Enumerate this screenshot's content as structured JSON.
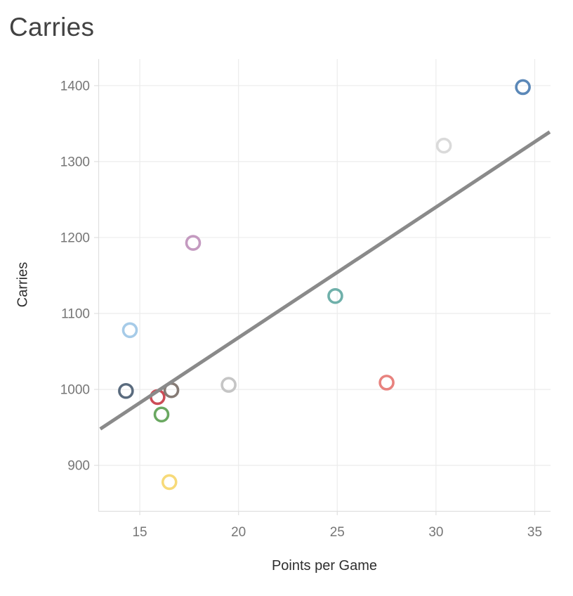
{
  "page": {
    "title": "Carries"
  },
  "chart_data": {
    "type": "scatter",
    "title": "Carries",
    "xlabel": "Points per Game",
    "ylabel": "Carries",
    "x_ticks": [
      15,
      20,
      25,
      30,
      35
    ],
    "y_ticks": [
      900,
      1000,
      1100,
      1200,
      1300,
      1400
    ],
    "xlim": [
      12.9,
      35.8
    ],
    "ylim": [
      840,
      1435
    ],
    "grid": true,
    "legend": "none",
    "marker_style": "open-circle",
    "points": [
      {
        "x": 34.4,
        "y": 1398,
        "color": "#5b88b8",
        "name": "blue"
      },
      {
        "x": 30.4,
        "y": 1321,
        "color": "#dadada",
        "name": "light-gray"
      },
      {
        "x": 17.7,
        "y": 1193,
        "color": "#c49ac0",
        "name": "mauve"
      },
      {
        "x": 24.9,
        "y": 1123,
        "color": "#6fb0aa",
        "name": "teal"
      },
      {
        "x": 14.5,
        "y": 1078,
        "color": "#a6cbe8",
        "name": "light-blue"
      },
      {
        "x": 19.5,
        "y": 1006,
        "color": "#c5c5c5",
        "name": "gray"
      },
      {
        "x": 27.5,
        "y": 1009,
        "color": "#e8827e",
        "name": "salmon"
      },
      {
        "x": 14.3,
        "y": 998,
        "color": "#5a6b7e",
        "name": "dark-slate"
      },
      {
        "x": 15.9,
        "y": 990,
        "color": "#cc4c56",
        "name": "red"
      },
      {
        "x": 16.6,
        "y": 999,
        "color": "#857a74",
        "name": "brown-gray"
      },
      {
        "x": 16.1,
        "y": 967,
        "color": "#6aa861",
        "name": "green"
      },
      {
        "x": 16.5,
        "y": 878,
        "color": "#f7da79",
        "name": "yellow"
      }
    ],
    "trend_line": {
      "x1": 13.0,
      "y1": 948,
      "x2": 35.76,
      "y2": 1339,
      "color": "#8a8a8a",
      "stroke_width": 5
    },
    "colors": {
      "gridline": "#ececec",
      "axis_line": "#e0e0e0",
      "tick_label": "#767676",
      "title_text": "#424242",
      "axis_title_text": "#2e2e2e"
    }
  }
}
